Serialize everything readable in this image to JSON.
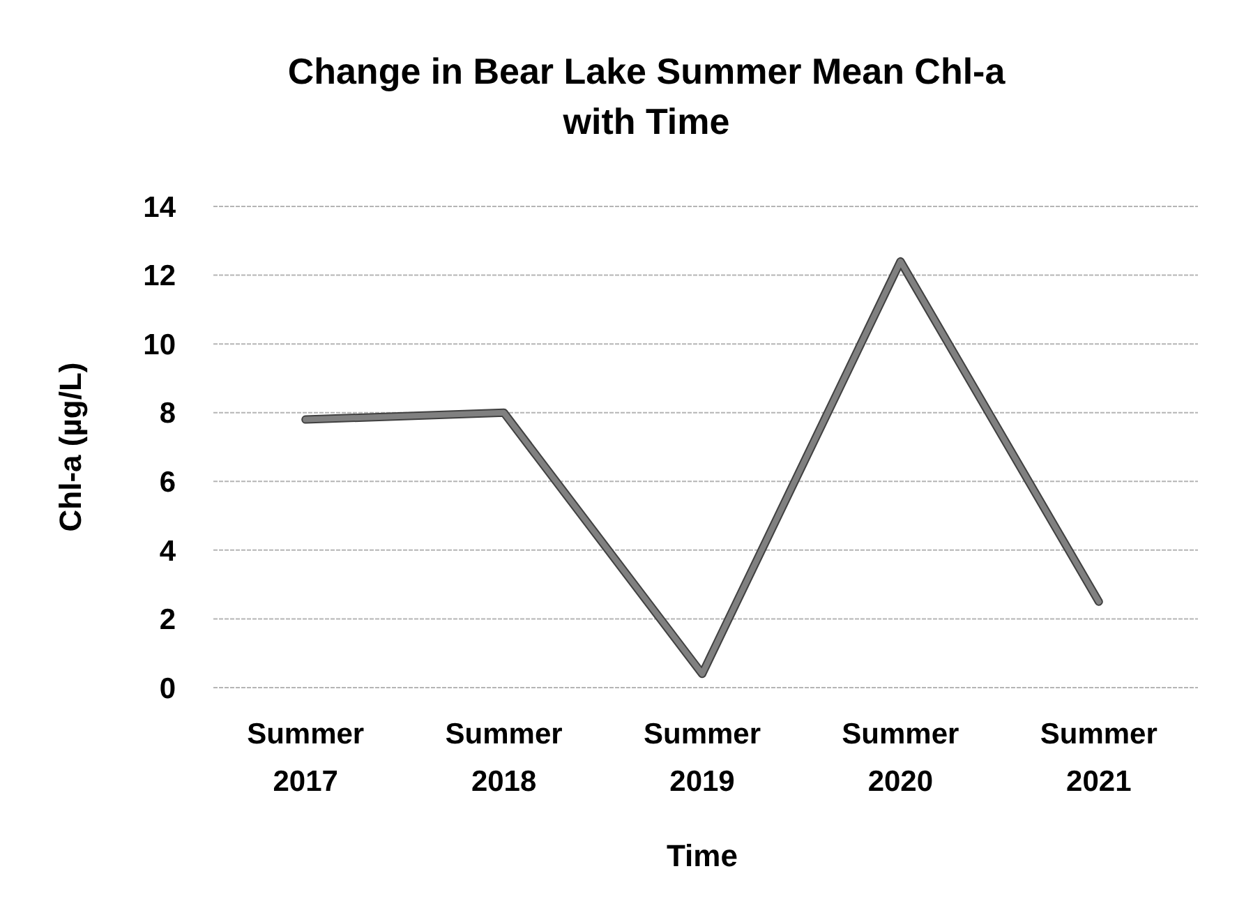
{
  "chart_data": {
    "type": "line",
    "title": "Change in Bear Lake Summer Mean Chl-a with Time",
    "xlabel": "Time",
    "ylabel": "Chl-a (µg/L)",
    "categories": [
      "Summer 2017",
      "Summer 2018",
      "Summer 2019",
      "Summer 2020",
      "Summer 2021"
    ],
    "series": [
      {
        "color": "#808080",
        "values": [
          7.8,
          8.0,
          0.4,
          12.4,
          2.5
        ]
      }
    ],
    "ylim": [
      0,
      14
    ],
    "yticks": [
      0,
      2,
      4,
      6,
      8,
      10,
      12,
      14
    ],
    "grid": "y",
    "marker": "none",
    "line_style": "solid"
  }
}
